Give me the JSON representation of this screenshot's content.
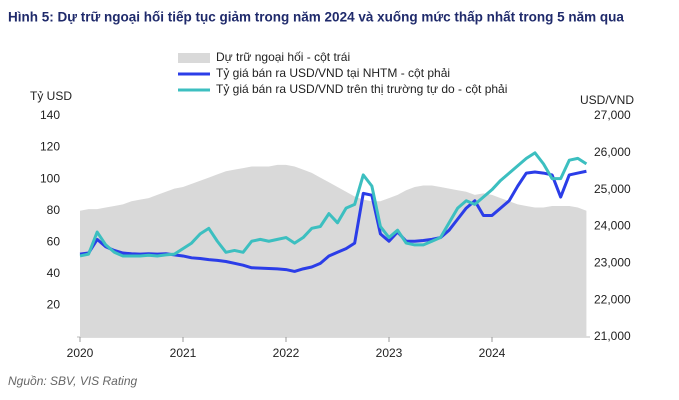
{
  "chart_data": {
    "type": "line",
    "title": "Hình 5: Dự trữ ngoại hối tiếp tục giảm trong năm 2024 và xuống mức thấp nhất trong 5 năm qua",
    "y_label": "Tỷ USD",
    "y2_label": "USD/VND",
    "source": "Nguồn: SBV, VIS Rating",
    "categories": [
      "2020",
      null,
      null,
      null,
      null,
      null,
      null,
      null,
      null,
      null,
      null,
      null,
      "2021",
      null,
      null,
      null,
      null,
      null,
      null,
      null,
      null,
      null,
      null,
      null,
      "2022",
      null,
      null,
      null,
      null,
      null,
      null,
      null,
      null,
      null,
      null,
      null,
      "2023",
      null,
      null,
      null,
      null,
      null,
      null,
      null,
      null,
      null,
      null,
      null,
      "2024",
      null,
      null,
      null,
      null,
      null,
      null,
      null,
      null,
      null,
      null,
      null
    ],
    "ylim": [
      0,
      140
    ],
    "yticks": [
      20,
      40,
      60,
      80,
      100,
      120,
      140
    ],
    "y2lim": [
      21000,
      27000
    ],
    "y2ticks": [
      {
        "value": 21000,
        "label": "21,000"
      },
      {
        "value": 22000,
        "label": "22,000"
      },
      {
        "value": 23000,
        "label": "23,000"
      },
      {
        "value": 24000,
        "label": "24,000"
      },
      {
        "value": 25000,
        "label": "25,000"
      },
      {
        "value": 26000,
        "label": "26,000"
      },
      {
        "value": 27000,
        "label": "27,000"
      }
    ],
    "grid": false,
    "series": [
      {
        "name": "Dự trữ ngoại hối - cột trái",
        "type": "area",
        "color": "#d9d9d9",
        "values": [
          80,
          81,
          81,
          82,
          83,
          84,
          86,
          87,
          88,
          90,
          92,
          94,
          95,
          97,
          99,
          101,
          103,
          105,
          106,
          107,
          108,
          108,
          108,
          109,
          109,
          108,
          106,
          104,
          101,
          98,
          95,
          92,
          89,
          87,
          86,
          86,
          88,
          90,
          93,
          95,
          96,
          96,
          95,
          94,
          93,
          92,
          90,
          91,
          90,
          88,
          86,
          84,
          83,
          82,
          82,
          83,
          83,
          83,
          82,
          80
        ]
      },
      {
        "name": "Tỷ giá bán ra USD/VND tại NHTM - cột phải",
        "type": "line",
        "axis": "y2",
        "color": "#2b3de8",
        "values": [
          23250,
          23280,
          23650,
          23450,
          23350,
          23280,
          23260,
          23250,
          23260,
          23250,
          23260,
          23230,
          23200,
          23150,
          23130,
          23100,
          23080,
          23050,
          23000,
          22950,
          22880,
          22870,
          22860,
          22850,
          22830,
          22780,
          22850,
          22900,
          23000,
          23200,
          23300,
          23400,
          23550,
          24900,
          24850,
          23800,
          23600,
          23850,
          23600,
          23600,
          23620,
          23650,
          23700,
          23900,
          24200,
          24500,
          24700,
          24300,
          24300,
          24500,
          24700,
          25100,
          25450,
          25480,
          25450,
          25400,
          24800,
          25400,
          25450,
          25500
        ]
      },
      {
        "name": "Tỷ giá bán ra USD/VND trên thị trường tự do - cột phải",
        "type": "line",
        "axis": "y2",
        "color": "#3cbfc0",
        "values": [
          23200,
          23250,
          23850,
          23500,
          23300,
          23200,
          23200,
          23200,
          23220,
          23200,
          23230,
          23250,
          23400,
          23550,
          23800,
          23950,
          23600,
          23300,
          23350,
          23300,
          23600,
          23650,
          23600,
          23650,
          23700,
          23550,
          23700,
          23950,
          24000,
          24350,
          24100,
          24500,
          24600,
          25400,
          25100,
          24000,
          23700,
          23900,
          23550,
          23500,
          23500,
          23600,
          23700,
          24100,
          24500,
          24700,
          24600,
          24800,
          25000,
          25250,
          25450,
          25650,
          25850,
          26000,
          25700,
          25300,
          25300,
          25800,
          25850,
          25700
        ]
      }
    ]
  }
}
